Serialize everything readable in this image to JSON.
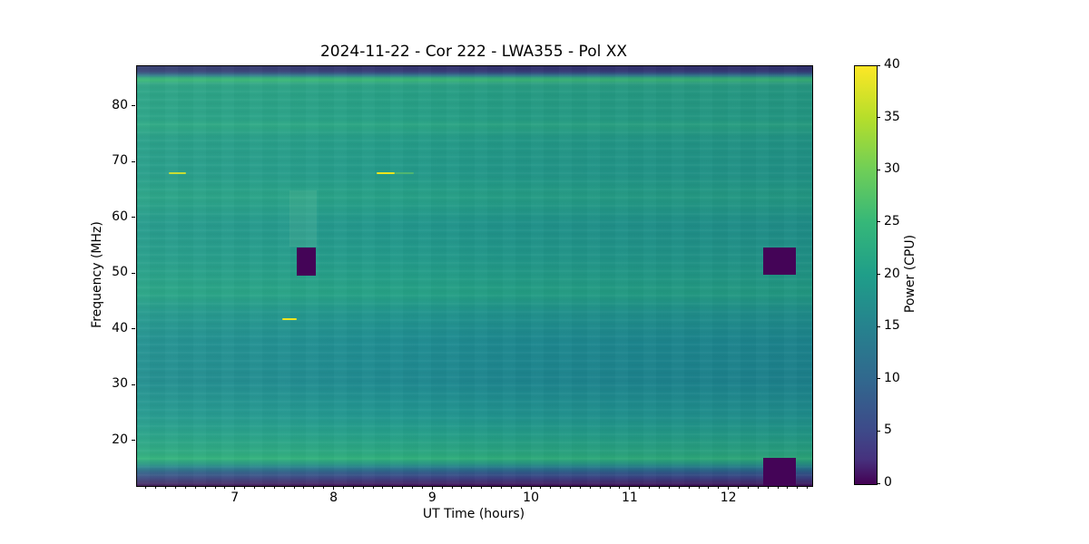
{
  "chart_data": {
    "type": "heatmap",
    "title": "2024-11-22 - Cor 222 - LWA355 - Pol XX",
    "xlabel": "UT Time (hours)",
    "ylabel": "Frequency (MHz)",
    "colorbar_label": "Power (CPU)",
    "colormap": "viridis",
    "xlim": [
      6.0,
      12.84
    ],
    "ylim": [
      12.0,
      87.3
    ],
    "clim": [
      0,
      40
    ],
    "x_ticks": [
      7,
      8,
      9,
      10,
      11,
      12
    ],
    "x_minor_tick_step": 0.1,
    "y_ticks": [
      20,
      30,
      40,
      50,
      60,
      70,
      80
    ],
    "colorbar_ticks": [
      0,
      5,
      10,
      15,
      20,
      25,
      30,
      35,
      40
    ],
    "grid": false,
    "legend": false,
    "mean_spectrum_profile": [
      {
        "freq_mhz": 87,
        "power": 3
      },
      {
        "freq_mhz": 85,
        "power": 26
      },
      {
        "freq_mhz": 80,
        "power": 22
      },
      {
        "freq_mhz": 76,
        "power": 23
      },
      {
        "freq_mhz": 70,
        "power": 21
      },
      {
        "freq_mhz": 62,
        "power": 22
      },
      {
        "freq_mhz": 55,
        "power": 21
      },
      {
        "freq_mhz": 45,
        "power": 22
      },
      {
        "freq_mhz": 40,
        "power": 19
      },
      {
        "freq_mhz": 33,
        "power": 18
      },
      {
        "freq_mhz": 25,
        "power": 20
      },
      {
        "freq_mhz": 18,
        "power": 24
      },
      {
        "freq_mhz": 15,
        "power": 10
      },
      {
        "freq_mhz": 13,
        "power": 1
      }
    ],
    "flagged_regions": [
      {
        "t_start": 7.62,
        "t_end": 7.81,
        "f_low": 49.7,
        "f_high": 54.7,
        "power": 0,
        "color": "#440457"
      },
      {
        "t_start": 12.34,
        "t_end": 12.67,
        "f_low": 49.9,
        "f_high": 54.7,
        "power": 0,
        "color": "#440457"
      },
      {
        "t_start": 12.34,
        "t_end": 12.67,
        "f_low": 12.0,
        "f_high": 17.0,
        "power": 0,
        "color": "#440457"
      }
    ],
    "rfi_bursts": [
      {
        "t_start": 6.32,
        "t_end": 6.5,
        "freq_mhz": 68.1,
        "power": 36,
        "color": "#c8dc34"
      },
      {
        "t_start": 8.43,
        "t_end": 8.61,
        "freq_mhz": 68.1,
        "power": 40,
        "color": "#ece51c"
      },
      {
        "t_start": 8.61,
        "t_end": 8.8,
        "freq_mhz": 68.1,
        "power": 28,
        "color": "#4fb472"
      },
      {
        "t_start": 7.47,
        "t_end": 7.62,
        "freq_mhz": 41.9,
        "power": 40,
        "color": "#f2e51d"
      }
    ],
    "bright_columns": [
      {
        "t_start": 7.54,
        "t_end": 7.82,
        "f_low": 55.0,
        "f_high": 65.0
      }
    ]
  }
}
